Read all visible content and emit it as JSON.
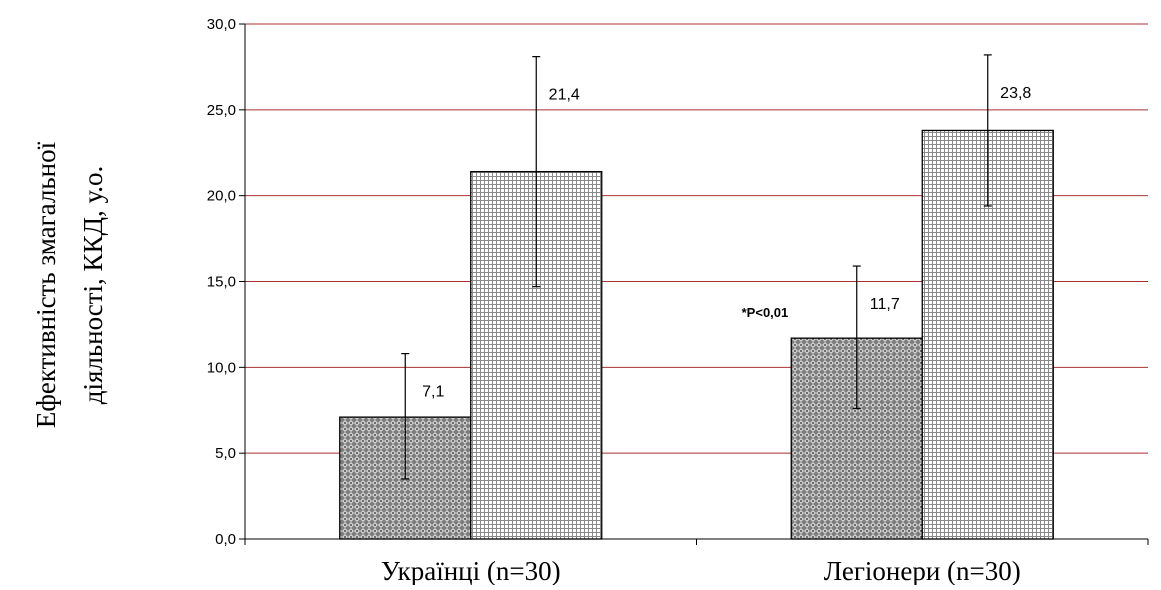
{
  "chart_data": {
    "type": "bar",
    "title": "",
    "ylabel_lines": [
      "Ефективність змагальної",
      "діяльності, ККД, у.о."
    ],
    "categories": [
      "Українці (n=30)",
      "Легіонери (n=30)"
    ],
    "series": [
      {
        "values": [
          7.1,
          11.7
        ],
        "errors": [
          [
            3.5,
            10.8
          ],
          [
            7.6,
            15.9
          ]
        ],
        "pattern": "diamond-dark"
      },
      {
        "values": [
          21.4,
          23.8
        ],
        "errors": [
          [
            14.7,
            28.1
          ],
          [
            19.4,
            28.2
          ]
        ],
        "pattern": "grid-light"
      }
    ],
    "data_labels": [
      [
        "7,1",
        "11,7"
      ],
      [
        "21,4",
        "23,8"
      ]
    ],
    "ylim": [
      0,
      30
    ],
    "yticks": [
      0,
      5,
      10,
      15,
      20,
      25,
      30
    ],
    "ytick_labels": [
      "0,0",
      "5,0",
      "10,0",
      "15,0",
      "20,0",
      "25,0",
      "30,0"
    ],
    "grid": true,
    "gridline_color": "#a83232",
    "annotation": {
      "text": "*P<0,01",
      "category_index": 1,
      "series_index": 0
    }
  }
}
